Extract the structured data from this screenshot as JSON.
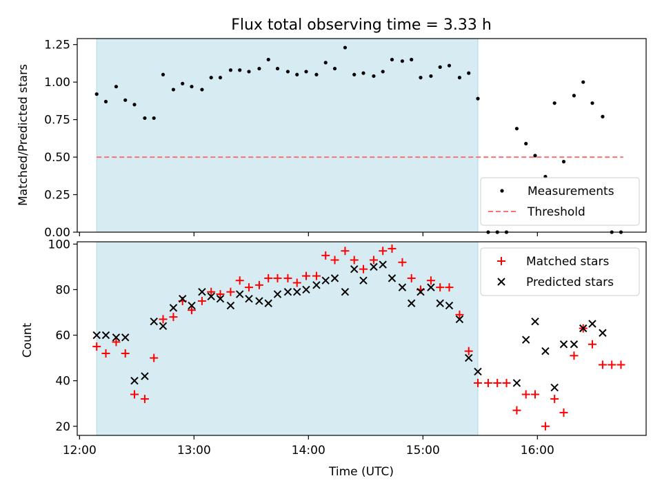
{
  "chart_data": [
    {
      "type": "scatter",
      "title": "Flux total observing time = 3.33 h",
      "ylabel": "Matched/Predicted stars",
      "xlabel": "",
      "xlim": [
        11.98,
        16.95
      ],
      "ylim": [
        0,
        1.29
      ],
      "y_ticks": [
        "0.00",
        "0.25",
        "0.50",
        "0.75",
        "1.00",
        "1.25"
      ],
      "y_tick_values": [
        0,
        0.25,
        0.5,
        0.75,
        1.0,
        1.25
      ],
      "shaded_span": {
        "x_start": 12.15,
        "x_end": 15.48,
        "color": "#add8e6"
      },
      "threshold": {
        "value": 0.5,
        "x_start": 12.15,
        "x_end": 16.75,
        "color": "#ff6f6f"
      },
      "legend": {
        "placement": "lower right",
        "entries": [
          "Measurements",
          "Threshold"
        ]
      },
      "series": [
        {
          "name": "Measurements",
          "x": [
            12.15,
            12.23,
            12.32,
            12.4,
            12.48,
            12.57,
            12.65,
            12.73,
            12.82,
            12.9,
            12.98,
            13.07,
            13.15,
            13.23,
            13.32,
            13.4,
            13.48,
            13.57,
            13.65,
            13.73,
            13.82,
            13.9,
            13.98,
            14.07,
            14.15,
            14.23,
            14.32,
            14.4,
            14.48,
            14.57,
            14.65,
            14.73,
            14.82,
            14.9,
            14.98,
            15.07,
            15.15,
            15.23,
            15.32,
            15.4,
            15.48,
            15.57,
            15.65,
            15.73,
            15.82,
            15.9,
            15.98,
            16.07,
            16.15,
            16.23,
            16.32,
            16.4,
            16.48,
            16.57,
            16.65,
            16.73
          ],
          "y": [
            0.92,
            0.87,
            0.97,
            0.88,
            0.85,
            0.76,
            0.76,
            1.05,
            0.95,
            0.99,
            0.97,
            0.95,
            1.03,
            1.03,
            1.08,
            1.08,
            1.07,
            1.09,
            1.15,
            1.09,
            1.07,
            1.05,
            1.07,
            1.05,
            1.13,
            1.09,
            1.23,
            1.05,
            1.06,
            1.04,
            1.07,
            1.15,
            1.14,
            1.15,
            1.03,
            1.04,
            1.1,
            1.11,
            1.03,
            1.06,
            0.89,
            0.0,
            0.0,
            0.0,
            0.69,
            0.59,
            0.51,
            0.37,
            0.86,
            0.47,
            0.91,
            1.0,
            0.86,
            0.77,
            0.0,
            0.0
          ]
        }
      ]
    },
    {
      "type": "scatter",
      "title": "",
      "ylabel": "Count",
      "xlabel": "Time (UTC)",
      "xlim": [
        11.98,
        16.95
      ],
      "ylim": [
        16.0,
        101.0
      ],
      "x_ticks": [
        "12:00",
        "13:00",
        "14:00",
        "15:00",
        "16:00"
      ],
      "x_tick_values": [
        12,
        13,
        14,
        15,
        16
      ],
      "y_ticks": [
        "20",
        "40",
        "60",
        "80",
        "100"
      ],
      "y_tick_values": [
        20,
        40,
        60,
        80,
        100
      ],
      "shaded_span": {
        "x_start": 12.15,
        "x_end": 15.48,
        "color": "#add8e6"
      },
      "legend": {
        "placement": "upper right",
        "entries": [
          "Matched stars",
          "Predicted stars"
        ]
      },
      "series": [
        {
          "name": "Matched stars",
          "marker": "+",
          "color": "#ff0000",
          "x": [
            12.15,
            12.23,
            12.32,
            12.4,
            12.48,
            12.57,
            12.65,
            12.73,
            12.82,
            12.9,
            12.98,
            13.07,
            13.15,
            13.23,
            13.32,
            13.4,
            13.48,
            13.57,
            13.65,
            13.73,
            13.82,
            13.9,
            13.98,
            14.07,
            14.15,
            14.23,
            14.32,
            14.4,
            14.48,
            14.57,
            14.65,
            14.73,
            14.82,
            14.9,
            14.98,
            15.07,
            15.15,
            15.23,
            15.32,
            15.4,
            15.48,
            15.57,
            15.65,
            15.73,
            15.82,
            15.9,
            15.98,
            16.07,
            16.15,
            16.23,
            16.32,
            16.4,
            16.48,
            16.57,
            16.65,
            16.73
          ],
          "y": [
            55,
            52,
            57,
            52,
            34,
            32,
            50,
            67,
            68,
            75,
            71,
            75,
            79,
            78,
            79,
            84,
            81,
            82,
            85,
            85,
            85,
            83,
            86,
            86,
            95,
            93,
            97,
            93,
            89,
            93,
            97,
            98,
            92,
            85,
            80,
            84,
            81,
            81,
            69,
            53,
            39,
            39,
            39,
            39,
            27,
            34,
            34,
            20,
            32,
            26,
            51,
            63,
            56,
            47,
            47,
            47
          ]
        },
        {
          "name": "Predicted stars",
          "marker": "x",
          "color": "#000000",
          "x": [
            12.15,
            12.23,
            12.32,
            12.4,
            12.48,
            12.57,
            12.65,
            12.73,
            12.82,
            12.9,
            12.98,
            13.07,
            13.15,
            13.23,
            13.32,
            13.4,
            13.48,
            13.57,
            13.65,
            13.73,
            13.82,
            13.9,
            13.98,
            14.07,
            14.15,
            14.23,
            14.32,
            14.4,
            14.48,
            14.57,
            14.65,
            14.73,
            14.82,
            14.9,
            14.98,
            15.07,
            15.15,
            15.23,
            15.32,
            15.4,
            15.48,
            15.82,
            15.9,
            15.98,
            16.07,
            16.15,
            16.23,
            16.32,
            16.4,
            16.48,
            16.57
          ],
          "y": [
            60,
            60,
            59,
            59,
            40,
            42,
            66,
            64,
            72,
            76,
            73,
            79,
            77,
            76,
            73,
            78,
            76,
            75,
            74,
            78,
            79,
            79,
            80,
            82,
            84,
            85,
            79,
            89,
            84,
            90,
            91,
            85,
            81,
            74,
            79,
            81,
            74,
            73,
            67,
            50,
            44,
            39,
            58,
            66,
            53,
            37,
            56,
            56,
            63,
            65,
            61
          ]
        }
      ]
    }
  ]
}
